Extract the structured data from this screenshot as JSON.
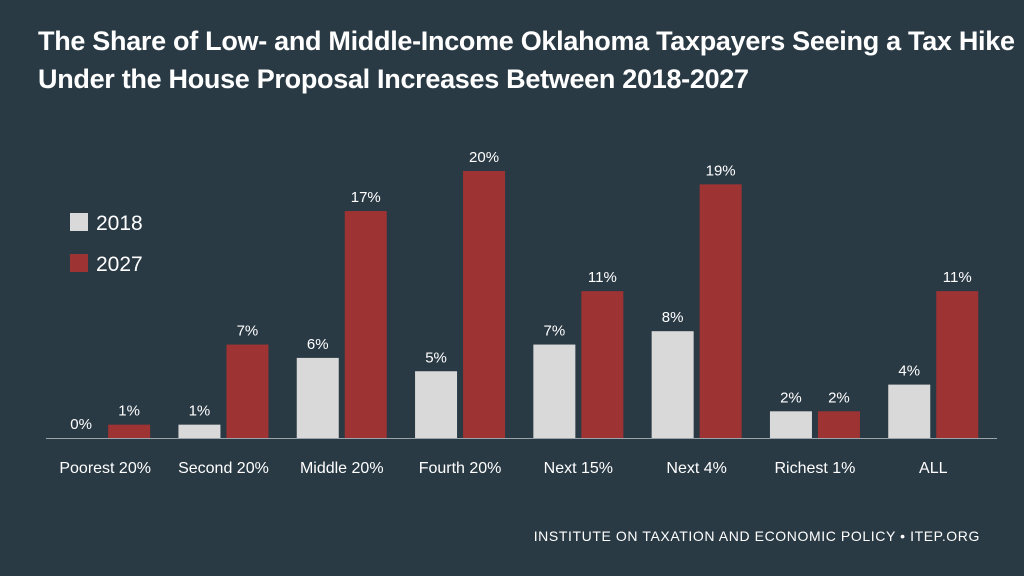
{
  "title_line1": "The Share of Low- and Middle-Income Oklahoma Taxpayers Seeing a Tax Hike",
  "title_line2": "Under the House Proposal Increases Between 2018-2027",
  "footer": "INSTITUTE ON TAXATION AND ECONOMIC POLICY • ITEP.ORG",
  "colors": {
    "background": "#2a3a45",
    "series_2018": "#d9d9d9",
    "series_2027": "#9e3333",
    "axis": "#9aa4ab"
  },
  "chart_data": {
    "type": "bar",
    "title": "The Share of Low- and Middle-Income Oklahoma Taxpayers Seeing a Tax Hike Under the House Proposal Increases Between 2018-2027",
    "categories": [
      "Poorest 20%",
      "Second 20%",
      "Middle 20%",
      "Fourth 20%",
      "Next 15%",
      "Next 4%",
      "Richest 1%",
      "ALL"
    ],
    "series": [
      {
        "name": "2018",
        "values": [
          0,
          1,
          6,
          5,
          7,
          8,
          2,
          4
        ],
        "labels": [
          "0%",
          "1%",
          "6%",
          "5%",
          "7%",
          "8%",
          "2%",
          "4%"
        ]
      },
      {
        "name": "2027",
        "values": [
          1,
          7,
          17,
          20,
          11,
          19,
          2,
          11
        ],
        "labels": [
          "1%",
          "7%",
          "17%",
          "20%",
          "11%",
          "19%",
          "2%",
          "11%"
        ]
      }
    ],
    "ylim": [
      0,
      20
    ],
    "xlabel": "",
    "ylabel": "",
    "grid": false,
    "legend_position": "top-left"
  }
}
